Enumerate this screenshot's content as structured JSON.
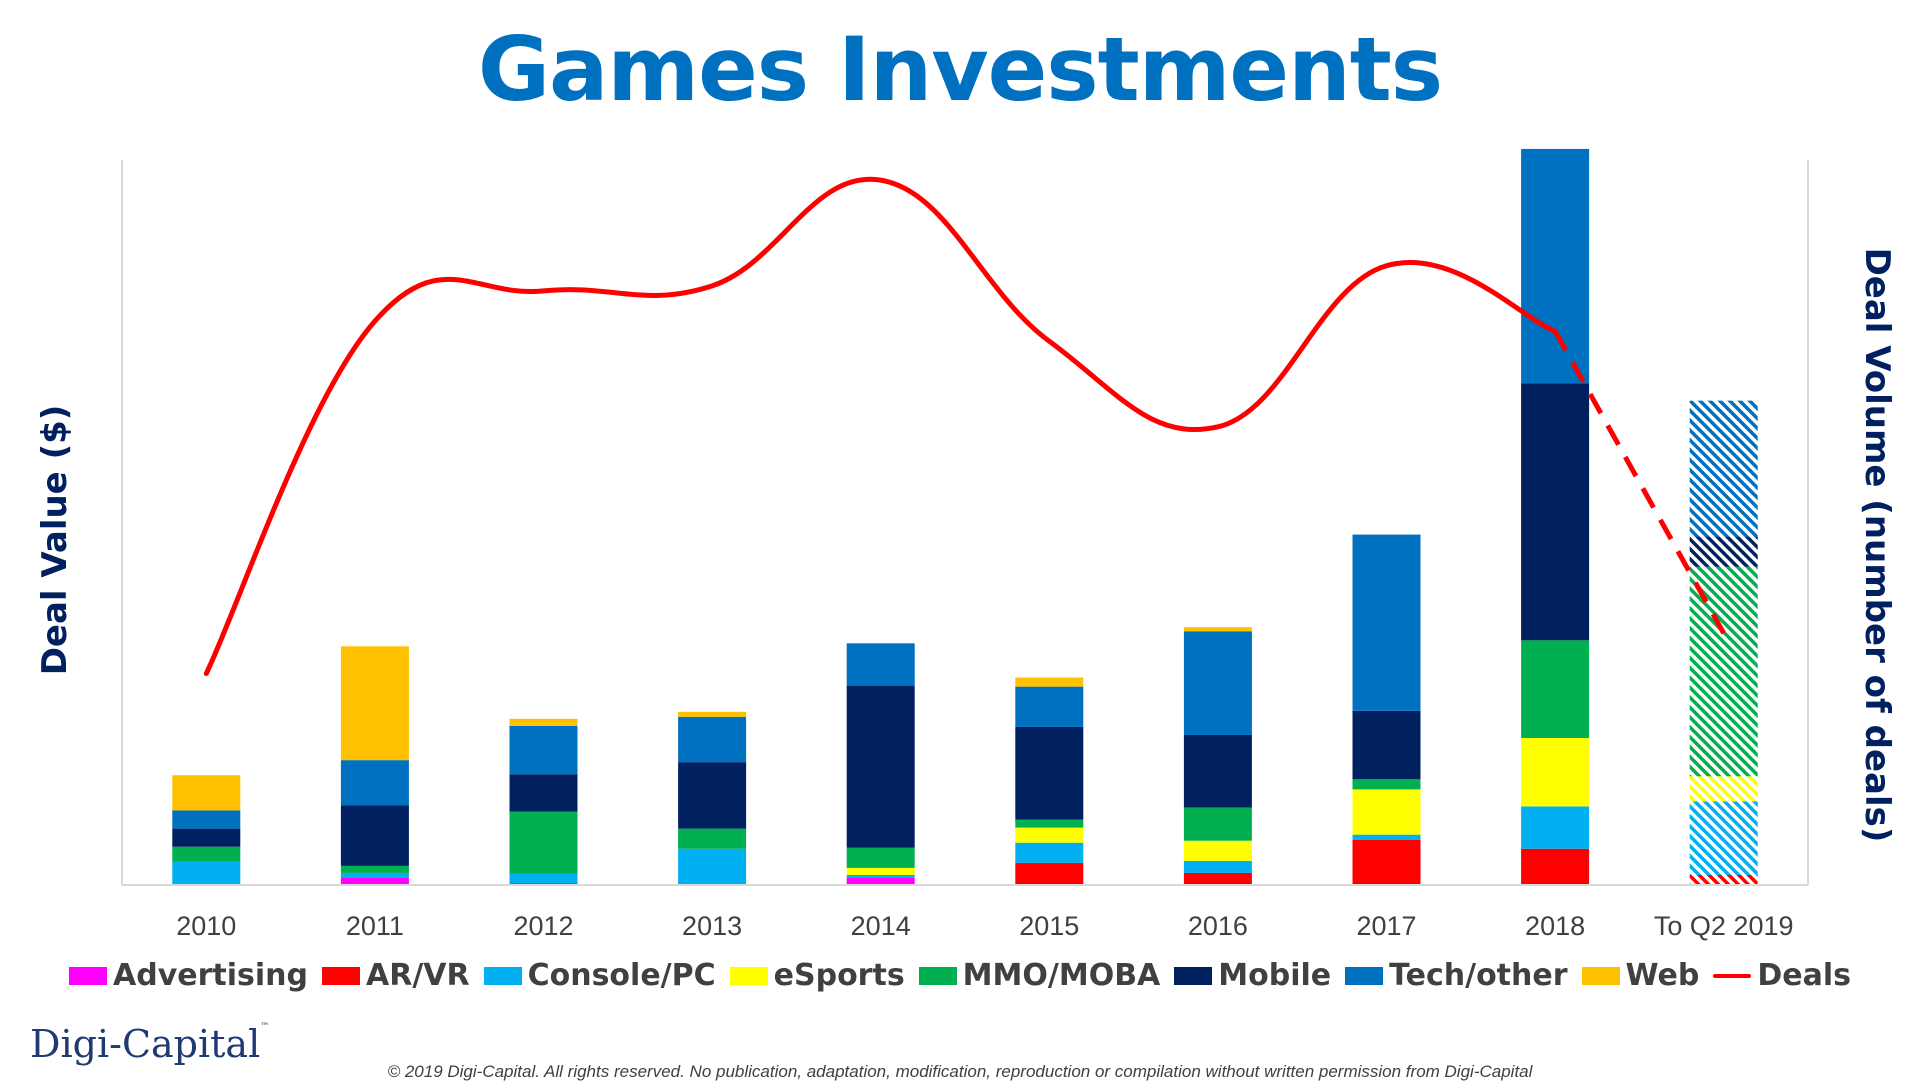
{
  "title": "Games Investments",
  "brand": "Digi-Capital",
  "copyright": "© 2019 Digi-Capital. All rights reserved. No publication, adaptation, modification, reproduction or compilation without written permission from Digi-Capital",
  "chart_data": {
    "type": "bar",
    "stacked": true,
    "ylabel": "Deal Value ($)",
    "y2label": "Deal Volume (number of deals)",
    "categories": [
      "2010",
      "2011",
      "2012",
      "2013",
      "2014",
      "2015",
      "2016",
      "2017",
      "2018",
      "To Q2 2019"
    ],
    "hatched_categories": [
      "To Q2 2019"
    ],
    "gridlines": false,
    "legend_position": "bottom",
    "series": [
      {
        "name": "Advertising",
        "color": "#ff00ff",
        "values": [
          0,
          7,
          2,
          0,
          7,
          0,
          0,
          0,
          1,
          0
        ]
      },
      {
        "name": "AR/VR",
        "color": "#ff0000",
        "values": [
          0,
          0,
          0,
          0,
          0,
          22,
          12,
          45,
          35,
          10
        ]
      },
      {
        "name": "Console/PC",
        "color": "#00b0f0",
        "values": [
          23,
          5,
          9,
          36,
          3,
          20,
          12,
          5,
          42,
          73
        ]
      },
      {
        "name": "eSports",
        "color": "#ffff00",
        "values": [
          0,
          0,
          0,
          0,
          7,
          15,
          20,
          45,
          68,
          25
        ]
      },
      {
        "name": "MMO/MOBA",
        "color": "#00b050",
        "values": [
          15,
          7,
          62,
          20,
          20,
          8,
          33,
          10,
          97,
          208
        ]
      },
      {
        "name": "Mobile",
        "color": "#002060",
        "values": [
          18,
          60,
          37,
          66,
          161,
          92,
          72,
          68,
          255,
          30
        ]
      },
      {
        "name": "Tech/other",
        "color": "#0070c0",
        "values": [
          18,
          45,
          48,
          45,
          42,
          40,
          103,
          175,
          233,
          135
        ]
      },
      {
        "name": "Web",
        "color": "#ffc000",
        "values": [
          35,
          113,
          7,
          5,
          0,
          9,
          4,
          0,
          0,
          0
        ]
      }
    ],
    "line_series": {
      "name": "Deals",
      "color": "#ff0000",
      "axis": "secondary",
      "dashed_from_category": "2018",
      "values": [
        210,
        560,
        590,
        595,
        700,
        540,
        455,
        615,
        550,
        250
      ]
    }
  }
}
